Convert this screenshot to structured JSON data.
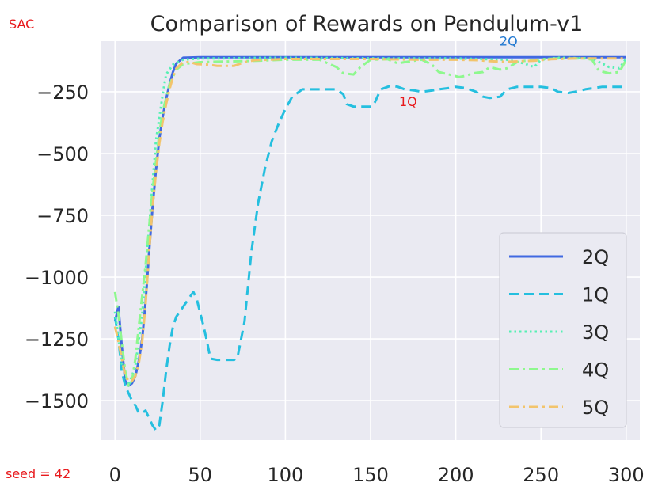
{
  "chart_data": {
    "type": "line",
    "title": "Comparison of Rewards on Pendulum-v1",
    "xlabel": "",
    "ylabel": "",
    "xlim": [
      -8,
      308
    ],
    "ylim": [
      -1660,
      -45
    ],
    "x_ticks": [
      0,
      50,
      100,
      150,
      200,
      250,
      300
    ],
    "y_ticks": [
      -250,
      -500,
      -750,
      -1000,
      -1250,
      -1500
    ],
    "y_tick_labels": [
      "−250",
      "−500",
      "−750",
      "−1000",
      "−1250",
      "−1500"
    ],
    "grid": true,
    "legend": "lower-right",
    "background": "#eaeaf2",
    "series": [
      {
        "name": "2Q",
        "color": "#4169e1",
        "style": "solid",
        "points": [
          [
            0,
            -1180
          ],
          [
            2,
            -1120
          ],
          [
            4,
            -1280
          ],
          [
            6,
            -1420
          ],
          [
            8,
            -1440
          ],
          [
            10,
            -1430
          ],
          [
            12,
            -1400
          ],
          [
            14,
            -1340
          ],
          [
            16,
            -1250
          ],
          [
            18,
            -1100
          ],
          [
            20,
            -900
          ],
          [
            22,
            -720
          ],
          [
            24,
            -570
          ],
          [
            26,
            -440
          ],
          [
            28,
            -350
          ],
          [
            30,
            -280
          ],
          [
            32,
            -220
          ],
          [
            34,
            -170
          ],
          [
            36,
            -135
          ],
          [
            40,
            -112
          ],
          [
            50,
            -110
          ],
          [
            60,
            -110
          ],
          [
            80,
            -110
          ],
          [
            100,
            -110
          ],
          [
            150,
            -110
          ],
          [
            200,
            -110
          ],
          [
            250,
            -110
          ],
          [
            300,
            -110
          ]
        ]
      },
      {
        "name": "1Q",
        "color": "#25bfdf",
        "style": "dashed",
        "points": [
          [
            0,
            -1160
          ],
          [
            2,
            -1250
          ],
          [
            4,
            -1380
          ],
          [
            6,
            -1440
          ],
          [
            8,
            -1470
          ],
          [
            10,
            -1500
          ],
          [
            12,
            -1520
          ],
          [
            14,
            -1550
          ],
          [
            16,
            -1550
          ],
          [
            18,
            -1540
          ],
          [
            20,
            -1570
          ],
          [
            22,
            -1600
          ],
          [
            24,
            -1620
          ],
          [
            26,
            -1600
          ],
          [
            28,
            -1500
          ],
          [
            30,
            -1380
          ],
          [
            32,
            -1280
          ],
          [
            34,
            -1200
          ],
          [
            36,
            -1160
          ],
          [
            40,
            -1120
          ],
          [
            44,
            -1080
          ],
          [
            46,
            -1060
          ],
          [
            48,
            -1090
          ],
          [
            52,
            -1200
          ],
          [
            54,
            -1260
          ],
          [
            56,
            -1330
          ],
          [
            60,
            -1335
          ],
          [
            65,
            -1335
          ],
          [
            70,
            -1335
          ],
          [
            72,
            -1320
          ],
          [
            76,
            -1180
          ],
          [
            80,
            -900
          ],
          [
            84,
            -700
          ],
          [
            88,
            -560
          ],
          [
            92,
            -450
          ],
          [
            96,
            -380
          ],
          [
            100,
            -320
          ],
          [
            104,
            -270
          ],
          [
            110,
            -240
          ],
          [
            120,
            -240
          ],
          [
            130,
            -240
          ],
          [
            134,
            -260
          ],
          [
            136,
            -300
          ],
          [
            140,
            -310
          ],
          [
            150,
            -310
          ],
          [
            152,
            -300
          ],
          [
            156,
            -240
          ],
          [
            162,
            -225
          ],
          [
            166,
            -230
          ],
          [
            170,
            -240
          ],
          [
            176,
            -245
          ],
          [
            180,
            -250
          ],
          [
            186,
            -245
          ],
          [
            190,
            -240
          ],
          [
            196,
            -235
          ],
          [
            200,
            -230
          ],
          [
            206,
            -235
          ],
          [
            212,
            -250
          ],
          [
            216,
            -270
          ],
          [
            220,
            -275
          ],
          [
            226,
            -270
          ],
          [
            230,
            -240
          ],
          [
            236,
            -230
          ],
          [
            250,
            -230
          ],
          [
            256,
            -235
          ],
          [
            260,
            -250
          ],
          [
            266,
            -255
          ],
          [
            270,
            -250
          ],
          [
            276,
            -240
          ],
          [
            286,
            -230
          ],
          [
            300,
            -230
          ]
        ]
      },
      {
        "name": "3Q",
        "color": "#56f0b4",
        "style": "dotted",
        "points": [
          [
            0,
            -1140
          ],
          [
            4,
            -1350
          ],
          [
            8,
            -1440
          ],
          [
            12,
            -1360
          ],
          [
            16,
            -1150
          ],
          [
            20,
            -800
          ],
          [
            24,
            -450
          ],
          [
            28,
            -260
          ],
          [
            30,
            -180
          ],
          [
            34,
            -140
          ],
          [
            40,
            -120
          ],
          [
            50,
            -115
          ],
          [
            60,
            -115
          ],
          [
            80,
            -113
          ],
          [
            100,
            -112
          ],
          [
            140,
            -114
          ],
          [
            170,
            -115
          ],
          [
            200,
            -115
          ],
          [
            230,
            -120
          ],
          [
            240,
            -135
          ],
          [
            246,
            -150
          ],
          [
            250,
            -120
          ],
          [
            260,
            -112
          ],
          [
            280,
            -115
          ],
          [
            290,
            -150
          ],
          [
            296,
            -155
          ],
          [
            300,
            -115
          ]
        ]
      },
      {
        "name": "4Q",
        "color": "#8ef88e",
        "style": "dashdot",
        "points": [
          [
            0,
            -1060
          ],
          [
            2,
            -1150
          ],
          [
            6,
            -1380
          ],
          [
            8,
            -1440
          ],
          [
            10,
            -1420
          ],
          [
            12,
            -1330
          ],
          [
            14,
            -1200
          ],
          [
            18,
            -950
          ],
          [
            22,
            -650
          ],
          [
            26,
            -420
          ],
          [
            28,
            -330
          ],
          [
            32,
            -220
          ],
          [
            36,
            -160
          ],
          [
            40,
            -138
          ],
          [
            50,
            -130
          ],
          [
            60,
            -128
          ],
          [
            80,
            -125
          ],
          [
            100,
            -120
          ],
          [
            120,
            -120
          ],
          [
            130,
            -150
          ],
          [
            134,
            -175
          ],
          [
            140,
            -180
          ],
          [
            144,
            -150
          ],
          [
            150,
            -120
          ],
          [
            160,
            -118
          ],
          [
            166,
            -135
          ],
          [
            170,
            -130
          ],
          [
            180,
            -120
          ],
          [
            186,
            -140
          ],
          [
            190,
            -170
          ],
          [
            196,
            -180
          ],
          [
            202,
            -190
          ],
          [
            206,
            -185
          ],
          [
            210,
            -175
          ],
          [
            216,
            -170
          ],
          [
            220,
            -150
          ],
          [
            226,
            -160
          ],
          [
            230,
            -155
          ],
          [
            236,
            -130
          ],
          [
            240,
            -125
          ],
          [
            250,
            -118
          ],
          [
            260,
            -115
          ],
          [
            276,
            -115
          ],
          [
            280,
            -120
          ],
          [
            284,
            -165
          ],
          [
            290,
            -175
          ],
          [
            296,
            -170
          ],
          [
            300,
            -120
          ]
        ]
      },
      {
        "name": "5Q",
        "color": "#f2c46c",
        "style": "dashdot",
        "points": [
          [
            0,
            -1200
          ],
          [
            2,
            -1260
          ],
          [
            4,
            -1330
          ],
          [
            6,
            -1400
          ],
          [
            8,
            -1420
          ],
          [
            10,
            -1420
          ],
          [
            12,
            -1400
          ],
          [
            14,
            -1350
          ],
          [
            16,
            -1260
          ],
          [
            18,
            -1110
          ],
          [
            20,
            -900
          ],
          [
            22,
            -720
          ],
          [
            24,
            -580
          ],
          [
            26,
            -460
          ],
          [
            28,
            -370
          ],
          [
            30,
            -300
          ],
          [
            32,
            -240
          ],
          [
            34,
            -190
          ],
          [
            36,
            -155
          ],
          [
            40,
            -130
          ],
          [
            44,
            -130
          ],
          [
            48,
            -138
          ],
          [
            54,
            -140
          ],
          [
            60,
            -145
          ],
          [
            70,
            -145
          ],
          [
            76,
            -130
          ],
          [
            82,
            -122
          ],
          [
            90,
            -120
          ],
          [
            100,
            -117
          ],
          [
            150,
            -117
          ],
          [
            180,
            -120
          ],
          [
            200,
            -120
          ],
          [
            214,
            -122
          ],
          [
            218,
            -125
          ],
          [
            226,
            -128
          ],
          [
            232,
            -128
          ],
          [
            238,
            -126
          ],
          [
            246,
            -124
          ],
          [
            256,
            -118
          ],
          [
            270,
            -115
          ],
          [
            300,
            -115
          ]
        ]
      }
    ],
    "annotations": [
      {
        "text": "2Q",
        "x": 231,
        "y": -62,
        "color": "#1f77d0"
      },
      {
        "text": "1Q",
        "x": 172,
        "y": -308,
        "color": "#e8191c"
      }
    ]
  },
  "notes": {
    "corner_label": "SAC",
    "seed_label": "seed = 42"
  }
}
